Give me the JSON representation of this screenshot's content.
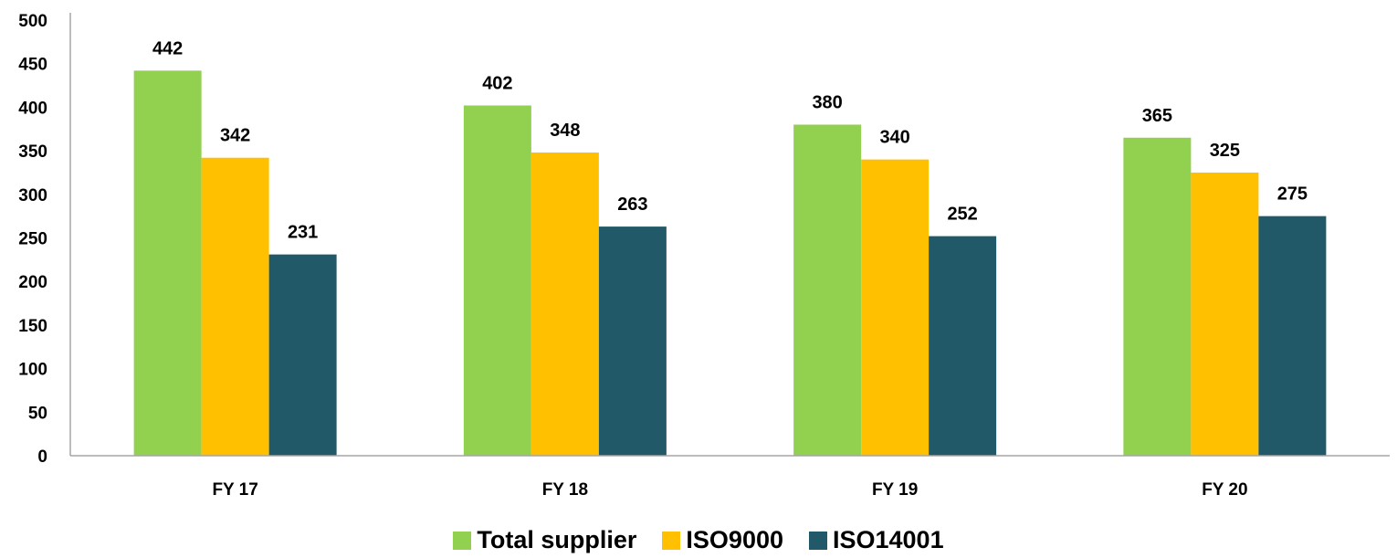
{
  "chart_data": {
    "type": "bar",
    "categories": [
      "FY 17",
      "FY 18",
      "FY 19",
      "FY 20"
    ],
    "series": [
      {
        "name": "Total supplier",
        "values": [
          442,
          402,
          380,
          365
        ],
        "color": "#92D050"
      },
      {
        "name": "ISO9000",
        "values": [
          342,
          348,
          340,
          325
        ],
        "color": "#FFC000"
      },
      {
        "name": "ISO14001",
        "values": [
          231,
          263,
          252,
          275
        ],
        "color": "#215968"
      }
    ],
    "title": "",
    "xlabel": "",
    "ylabel": "",
    "ylim": [
      0,
      500
    ],
    "yticks": [
      0,
      50,
      100,
      150,
      200,
      250,
      300,
      350,
      400,
      450,
      500
    ],
    "data_labels": true,
    "grid": false,
    "legend_position": "bottom"
  }
}
